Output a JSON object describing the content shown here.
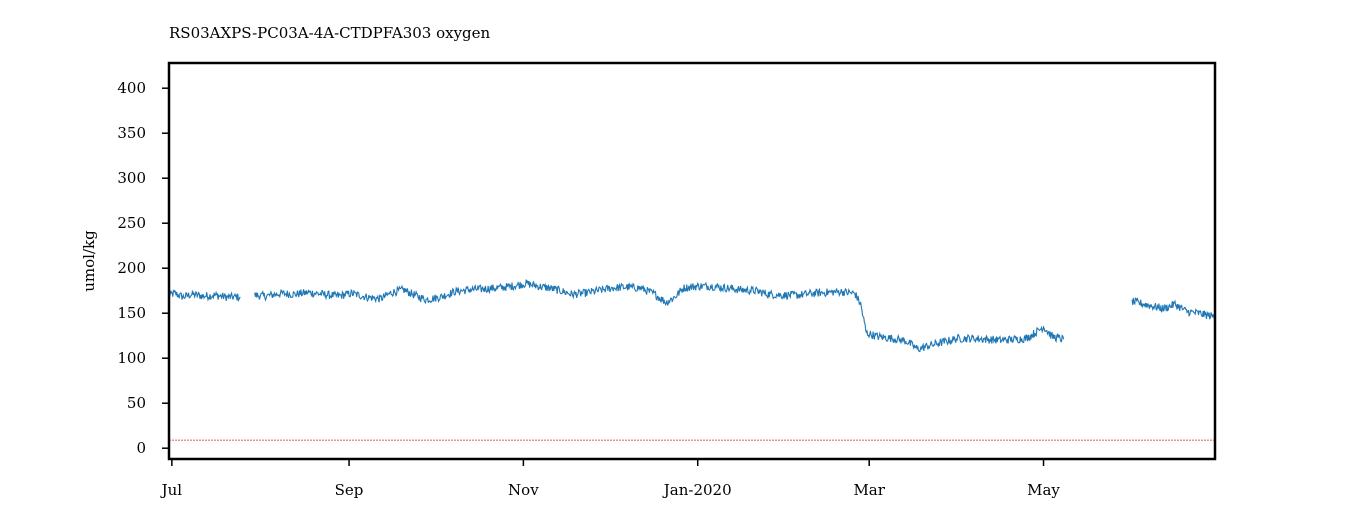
{
  "chart_data": {
    "type": "line",
    "title": "RS03AXPS-PC03A-4A-CTDPFA303 oxygen",
    "xlabel": "",
    "ylabel": "umol/kg",
    "x_range": [
      "2019-06-30",
      "2020-06-30"
    ],
    "ylim": [
      -12,
      428
    ],
    "y_ticks": [
      0,
      50,
      100,
      150,
      200,
      250,
      300,
      350,
      400
    ],
    "x_ticks": [
      {
        "date": "2019-07-01",
        "label": "Jul"
      },
      {
        "date": "2019-09-01",
        "label": "Sep"
      },
      {
        "date": "2019-11-01",
        "label": "Nov"
      },
      {
        "date": "2020-01-01",
        "label": "Jan-2020"
      },
      {
        "date": "2020-03-01",
        "label": "Mar"
      },
      {
        "date": "2020-05-01",
        "label": "May"
      }
    ],
    "grid": false,
    "colors": {
      "series": "#1f77b4",
      "threshold": "#d62728"
    },
    "series": [
      {
        "segments": [
          [
            [
              "2019-06-30",
              170
            ],
            [
              "2019-07-02",
              172
            ],
            [
              "2019-07-05",
              168
            ],
            [
              "2019-07-08",
              171
            ],
            [
              "2019-07-12",
              169
            ],
            [
              "2019-07-16",
              170
            ],
            [
              "2019-07-20",
              168
            ],
            [
              "2019-07-25",
              168
            ]
          ],
          [
            [
              "2019-07-30",
              170
            ],
            [
              "2019-08-03",
              169
            ],
            [
              "2019-08-08",
              172
            ],
            [
              "2019-08-13",
              171
            ],
            [
              "2019-08-18",
              173
            ],
            [
              "2019-08-23",
              171
            ],
            [
              "2019-08-28",
              169
            ],
            [
              "2019-09-02",
              172
            ],
            [
              "2019-09-07",
              168
            ],
            [
              "2019-09-12",
              166
            ],
            [
              "2019-09-16",
              173
            ],
            [
              "2019-09-20",
              176
            ],
            [
              "2019-09-24",
              170
            ],
            [
              "2019-09-28",
              165
            ],
            [
              "2019-10-03",
              168
            ],
            [
              "2019-10-08",
              174
            ],
            [
              "2019-10-13",
              176
            ],
            [
              "2019-10-18",
              177
            ],
            [
              "2019-10-23",
              178
            ],
            [
              "2019-10-28",
              180
            ],
            [
              "2019-11-02",
              183
            ],
            [
              "2019-11-06",
              180
            ],
            [
              "2019-11-10",
              178
            ],
            [
              "2019-11-14",
              175
            ],
            [
              "2019-11-18",
              171
            ],
            [
              "2019-11-22",
              172
            ],
            [
              "2019-11-27",
              175
            ],
            [
              "2019-12-02",
              178
            ],
            [
              "2019-12-07",
              179
            ],
            [
              "2019-12-12",
              178
            ],
            [
              "2019-12-17",
              171
            ],
            [
              "2019-12-21",
              162
            ],
            [
              "2019-12-24",
              168
            ],
            [
              "2019-12-27",
              178
            ],
            [
              "2020-01-01",
              180
            ],
            [
              "2020-01-06",
              180
            ],
            [
              "2020-01-11",
              178
            ],
            [
              "2020-01-16",
              176
            ],
            [
              "2020-01-21",
              175
            ],
            [
              "2020-01-26",
              171
            ],
            [
              "2020-01-31",
              170
            ],
            [
              "2020-02-05",
              170
            ],
            [
              "2020-02-10",
              172
            ],
            [
              "2020-02-15",
              173
            ],
            [
              "2020-02-20",
              174
            ],
            [
              "2020-02-25",
              172
            ],
            [
              "2020-02-27",
              160
            ],
            [
              "2020-02-29",
              128
            ],
            [
              "2020-03-04",
              124
            ],
            [
              "2020-03-09",
              122
            ],
            [
              "2020-03-14",
              119
            ],
            [
              "2020-03-18",
              110
            ],
            [
              "2020-03-22",
              114
            ],
            [
              "2020-03-27",
              118
            ],
            [
              "2020-04-01",
              122
            ],
            [
              "2020-04-06",
              122
            ],
            [
              "2020-04-11",
              121
            ],
            [
              "2020-04-16",
              120
            ],
            [
              "2020-04-21",
              121
            ],
            [
              "2020-04-25",
              122
            ],
            [
              "2020-04-28",
              128
            ],
            [
              "2020-05-01",
              135
            ],
            [
              "2020-05-04",
              124
            ],
            [
              "2020-05-08",
              121
            ]
          ],
          [
            [
              "2020-06-01",
              163
            ],
            [
              "2020-06-04",
              161
            ],
            [
              "2020-06-08",
              158
            ],
            [
              "2020-06-12",
              155
            ],
            [
              "2020-06-16",
              160
            ],
            [
              "2020-06-20",
              152
            ],
            [
              "2020-06-24",
              150
            ],
            [
              "2020-06-27",
              148
            ],
            [
              "2020-06-30",
              146
            ]
          ]
        ]
      },
      {
        "name": "threshold",
        "values": [
          [
            "2019-06-30",
            9
          ],
          [
            "2020-06-30",
            9
          ]
        ]
      }
    ]
  }
}
